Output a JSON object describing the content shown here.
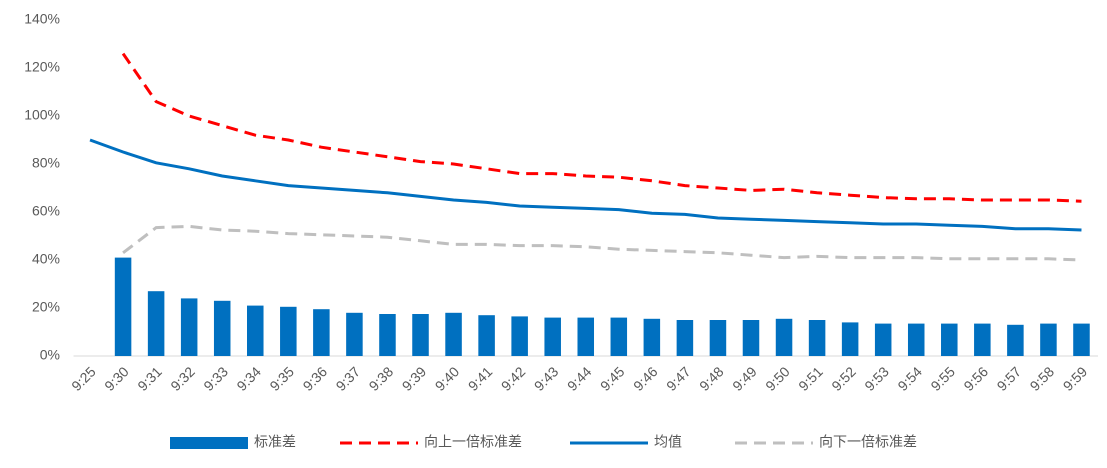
{
  "chart_data": {
    "type": "bar",
    "categories": [
      "9:25",
      "9:30",
      "9:31",
      "9:32",
      "9:33",
      "9:34",
      "9:35",
      "9:36",
      "9:37",
      "9:38",
      "9:39",
      "9:40",
      "9:41",
      "9:42",
      "9:43",
      "9:44",
      "9:45",
      "9:46",
      "9:47",
      "9:48",
      "9:49",
      "9:50",
      "9:51",
      "9:52",
      "9:53",
      "9:54",
      "9:55",
      "9:56",
      "9:57",
      "9:58",
      "9:59"
    ],
    "series": [
      {
        "name": "标准差",
        "type": "bar",
        "color": "#0070c0",
        "values": [
          null,
          41,
          27,
          24,
          23,
          21,
          20.5,
          19.5,
          18,
          17.5,
          17.5,
          18,
          17,
          16.5,
          16,
          16,
          16,
          15.5,
          15,
          15,
          15,
          15.5,
          15,
          14,
          13.5,
          13.5,
          13.5,
          13.5,
          13,
          13.5,
          13.5
        ]
      },
      {
        "name": "向上一倍标准差",
        "type": "line",
        "dash": true,
        "color": "#ff0000",
        "values": [
          null,
          126,
          106,
          100,
          96,
          92,
          90,
          87,
          85,
          83,
          81,
          80,
          78,
          76,
          76,
          75,
          74.5,
          73,
          71,
          70,
          69,
          69.5,
          68,
          67,
          66,
          65.5,
          65.5,
          65,
          65,
          65,
          64.5
        ]
      },
      {
        "name": "均值",
        "type": "line",
        "dash": false,
        "color": "#0070c0",
        "values": [
          90,
          85,
          80.5,
          78,
          75,
          73,
          71,
          70,
          69,
          68,
          66.5,
          65,
          64,
          62.5,
          62,
          61.5,
          61,
          59.5,
          59,
          57.5,
          57,
          56.5,
          56,
          55.5,
          55,
          55,
          54.5,
          54,
          53,
          53,
          52.5
        ]
      },
      {
        "name": "向下一倍标准差",
        "type": "line",
        "dash": true,
        "color": "#bfbfbf",
        "values": [
          null,
          43,
          53.5,
          54,
          52.5,
          52,
          51,
          50.5,
          50,
          49.5,
          48,
          46.5,
          46.5,
          46,
          46,
          45.5,
          44.5,
          44,
          43.5,
          43,
          42,
          41,
          41.5,
          41,
          41,
          41,
          40.5,
          40.5,
          40.5,
          40.5,
          40
        ]
      }
    ],
    "ylim": [
      0,
      140
    ],
    "yticks": [
      {
        "value": 0,
        "label": "0%"
      },
      {
        "value": 20,
        "label": "20%"
      },
      {
        "value": 40,
        "label": "40%"
      },
      {
        "value": 60,
        "label": "60%"
      },
      {
        "value": 80,
        "label": "80%"
      },
      {
        "value": 100,
        "label": "100%"
      },
      {
        "value": 120,
        "label": "120%"
      },
      {
        "value": 140,
        "label": "140%"
      }
    ],
    "grid": false,
    "legend": "bottom"
  }
}
